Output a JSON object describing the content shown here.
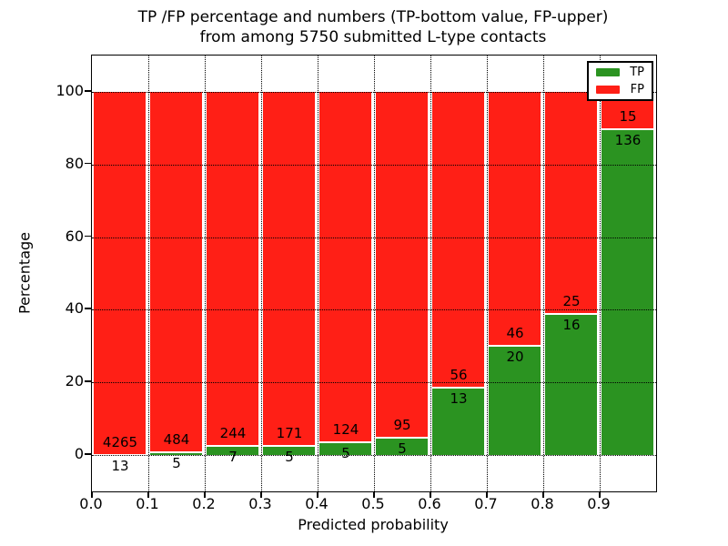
{
  "title": {
    "line1": "TP /FP percentage and numbers (TP-bottom value, FP-upper)",
    "line2": "from among 5750 submitted L-type contacts"
  },
  "axes": {
    "xlabel": "Predicted probability",
    "ylabel": "Percentage",
    "xtick_labels": [
      "0.0",
      "0.1",
      "0.2",
      "0.3",
      "0.4",
      "0.5",
      "0.6",
      "0.7",
      "0.8",
      "0.9"
    ],
    "ytick_labels": [
      "0",
      "20",
      "40",
      "60",
      "80",
      "100"
    ]
  },
  "legend": {
    "items": [
      {
        "label": "TP",
        "color": "#2b9321"
      },
      {
        "label": "FP",
        "color": "#ff1f16"
      }
    ]
  },
  "chart_data": {
    "type": "bar",
    "stacked": true,
    "title": "TP /FP percentage and numbers (TP-bottom value, FP-upper) from among 5750 submitted L-type contacts",
    "xlabel": "Predicted probability",
    "ylabel": "Percentage",
    "total_submitted": 5750,
    "categories": [
      "0.0-0.1",
      "0.1-0.2",
      "0.2-0.3",
      "0.3-0.4",
      "0.4-0.5",
      "0.5-0.6",
      "0.6-0.7",
      "0.7-0.8",
      "0.8-0.9",
      "0.9-1.0"
    ],
    "bin_start": [
      0.0,
      0.1,
      0.2,
      0.3,
      0.4,
      0.5,
      0.6,
      0.7,
      0.8,
      0.9
    ],
    "series": [
      {
        "name": "TP",
        "position": "bottom",
        "color": "#2b9321",
        "counts": [
          13,
          5,
          7,
          5,
          5,
          5,
          13,
          20,
          16,
          136
        ],
        "pct": [
          0.3,
          1.02,
          2.79,
          2.84,
          3.88,
          5.0,
          18.84,
          30.3,
          39.02,
          90.07
        ]
      },
      {
        "name": "FP",
        "position": "top",
        "color": "#ff1f16",
        "counts": [
          4265,
          484,
          244,
          171,
          124,
          95,
          56,
          46,
          25,
          15
        ],
        "pct": [
          99.7,
          98.98,
          97.21,
          97.16,
          96.12,
          95.0,
          81.16,
          69.7,
          60.98,
          9.93
        ]
      }
    ],
    "annotation_note": "FP count printed above TP/FP boundary, TP count printed below it",
    "xlim": [
      0.0,
      1.0
    ],
    "ylim": [
      -10,
      110
    ],
    "yticks": [
      0,
      20,
      40,
      60,
      80,
      100
    ],
    "xticks": [
      0.0,
      0.1,
      0.2,
      0.3,
      0.4,
      0.5,
      0.6,
      0.7,
      0.8,
      0.9
    ],
    "grid": "dotted",
    "legend_position": "upper right",
    "bar_edge_color": "#ffffff"
  }
}
